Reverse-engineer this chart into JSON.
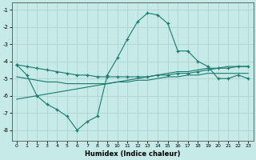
{
  "xlabel": "Humidex (Indice chaleur)",
  "background_color": "#c5eae8",
  "grid_color": "#aed4d2",
  "line_color": "#1a7a6e",
  "xlim": [
    -0.5,
    23.5
  ],
  "ylim": [
    -8.6,
    -0.6
  ],
  "yticks": [
    -8,
    -7,
    -6,
    -5,
    -4,
    -3,
    -2,
    -1
  ],
  "xticks": [
    0,
    1,
    2,
    3,
    4,
    5,
    6,
    7,
    8,
    9,
    10,
    11,
    12,
    13,
    14,
    15,
    16,
    17,
    18,
    19,
    20,
    21,
    22,
    23
  ],
  "line1_x": [
    0,
    1,
    2,
    3,
    4,
    5,
    6,
    7,
    8,
    9,
    10,
    11,
    12,
    13,
    14,
    15,
    16,
    17,
    18,
    19,
    20,
    21,
    22,
    23
  ],
  "line1_y": [
    -4.2,
    -4.8,
    -6.0,
    -6.5,
    -6.8,
    -7.2,
    -8.0,
    -7.5,
    -7.2,
    -4.8,
    -3.8,
    -2.7,
    -1.7,
    -1.2,
    -1.3,
    -1.8,
    -3.4,
    -3.4,
    -4.0,
    -4.3,
    -5.0,
    -5.0,
    -4.8,
    -5.0
  ],
  "line2_x": [
    0,
    1,
    2,
    3,
    4,
    5,
    6,
    7,
    8,
    9,
    10,
    11,
    12,
    13,
    14,
    15,
    16,
    17,
    18,
    19,
    20,
    21,
    22,
    23
  ],
  "line2_y": [
    -4.2,
    -4.3,
    -4.4,
    -4.5,
    -4.6,
    -4.7,
    -4.8,
    -4.8,
    -4.9,
    -4.9,
    -4.9,
    -4.9,
    -4.9,
    -4.9,
    -4.8,
    -4.8,
    -4.7,
    -4.7,
    -4.6,
    -4.5,
    -4.4,
    -4.4,
    -4.3,
    -4.3
  ],
  "line3_x": [
    0,
    1,
    2,
    3,
    4,
    5,
    6,
    7,
    8,
    9,
    10,
    11,
    12,
    13,
    14,
    15,
    16,
    17,
    18,
    19,
    20,
    21,
    22,
    23
  ],
  "line3_y": [
    -4.9,
    -5.0,
    -5.1,
    -5.2,
    -5.2,
    -5.3,
    -5.3,
    -5.3,
    -5.3,
    -5.3,
    -5.2,
    -5.2,
    -5.1,
    -5.1,
    -5.0,
    -4.9,
    -4.9,
    -4.8,
    -4.8,
    -4.7,
    -4.7,
    -4.7,
    -4.7,
    -4.7
  ],
  "line4_x": [
    0,
    1,
    2,
    3,
    4,
    5,
    6,
    7,
    8,
    9,
    10,
    11,
    12,
    13,
    14,
    15,
    16,
    17,
    18,
    19,
    20,
    21,
    22,
    23
  ],
  "line4_y": [
    -6.2,
    -6.1,
    -6.0,
    -5.9,
    -5.8,
    -5.7,
    -5.6,
    -5.5,
    -5.4,
    -5.3,
    -5.2,
    -5.1,
    -5.0,
    -4.9,
    -4.8,
    -4.7,
    -4.6,
    -4.6,
    -4.5,
    -4.4,
    -4.4,
    -4.3,
    -4.3,
    -4.3
  ]
}
